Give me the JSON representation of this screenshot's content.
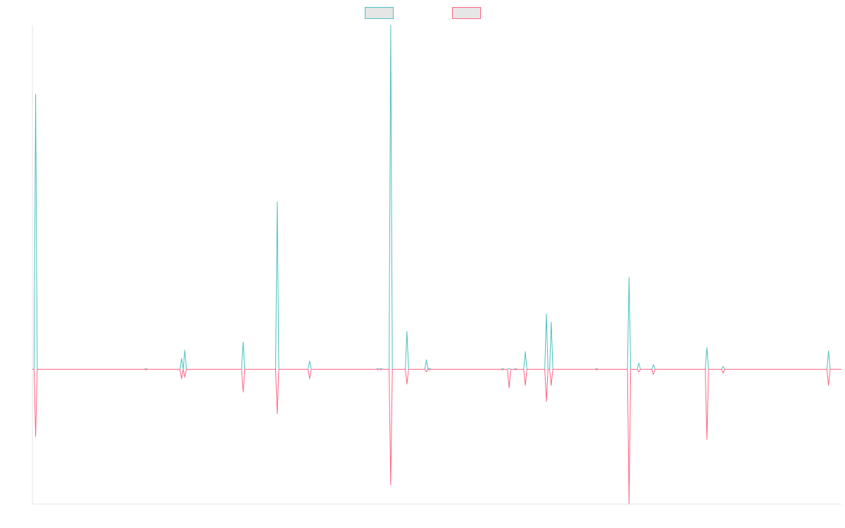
{
  "chart_data": {
    "type": "line",
    "title": "",
    "xlabel": "",
    "ylabel": "",
    "grid": false,
    "legend_position": "top-center",
    "ylim": [
      -1.0,
      2.55
    ],
    "x": [
      0,
      1,
      2,
      3,
      4,
      5,
      6,
      7,
      8,
      9,
      10,
      11,
      12,
      13,
      14,
      15,
      16,
      17,
      18,
      19,
      20,
      21,
      22,
      23,
      24,
      25,
      26,
      27,
      28,
      29,
      30,
      31,
      32,
      33,
      34,
      35,
      36,
      37,
      38,
      39,
      40,
      41,
      42,
      43,
      44,
      45,
      46,
      47,
      48,
      49,
      50,
      51,
      52,
      53,
      54,
      55,
      56,
      57,
      58,
      59,
      60,
      61,
      62,
      63,
      64,
      65,
      66,
      67,
      68,
      69,
      70,
      71,
      72,
      73,
      74,
      75,
      76,
      77,
      78,
      79,
      80,
      81,
      82,
      83,
      84,
      85,
      86,
      87,
      88,
      89,
      90,
      91,
      92,
      93,
      94,
      95,
      96,
      97,
      98,
      99,
      100,
      101,
      102,
      103,
      104,
      105,
      106,
      107,
      108,
      109,
      110,
      111,
      112,
      113,
      114,
      115,
      116,
      117,
      118,
      119,
      120,
      121,
      122,
      123,
      124,
      125,
      126,
      127,
      128,
      129,
      130,
      131,
      132,
      133,
      134,
      135,
      136,
      137,
      138,
      139,
      140,
      141,
      142,
      143,
      144,
      145,
      146,
      147,
      148,
      149,
      150,
      151,
      152,
      153,
      154,
      155,
      156,
      157,
      158,
      159,
      160,
      161,
      162,
      163,
      164,
      165,
      166,
      167,
      168,
      169,
      170,
      171,
      172,
      173,
      174,
      175,
      176,
      177,
      178,
      179,
      180,
      181,
      182,
      183,
      184,
      185,
      186,
      187,
      188,
      189,
      190,
      191,
      192,
      193,
      194,
      195,
      196,
      197,
      198,
      199,
      200,
      201,
      202,
      203,
      204,
      205,
      206,
      207,
      208,
      209,
      210,
      211,
      212,
      213,
      214,
      215,
      216,
      217,
      218,
      219,
      220,
      221,
      222,
      223,
      224,
      225,
      226,
      227,
      228,
      229,
      230,
      231,
      232,
      233,
      234,
      235,
      236,
      237,
      238,
      239,
      240,
      241,
      242,
      243,
      244,
      245,
      246,
      247,
      248,
      249,
      250,
      251,
      252,
      253,
      254,
      255,
      256,
      257,
      258,
      259,
      260,
      261,
      262,
      263,
      264,
      265,
      266,
      267,
      268,
      269,
      270,
      271,
      272,
      273,
      274,
      275,
      276,
      277,
      278,
      279,
      280,
      281,
      282,
      283,
      284,
      285,
      286,
      287,
      288,
      289,
      290,
      291,
      292,
      293,
      294,
      295,
      296,
      297,
      298,
      299,
      300,
      301,
      302,
      303,
      304,
      305,
      306,
      307,
      308,
      309,
      310,
      311,
      312,
      313,
      314,
      315,
      316,
      317,
      318,
      319,
      320,
      321,
      322,
      323,
      324,
      325,
      326,
      327,
      328,
      329,
      330,
      331,
      332,
      333,
      334,
      335,
      336,
      337,
      338,
      339,
      340,
      341,
      342,
      343,
      344,
      345,
      346,
      347,
      348,
      349,
      350,
      351,
      352,
      353,
      354,
      355,
      356,
      357,
      358,
      359,
      360,
      361,
      362,
      363,
      364,
      365,
      366,
      367,
      368,
      369,
      370,
      371,
      372,
      373,
      374,
      375,
      376,
      377,
      378,
      379,
      380,
      381,
      382,
      383,
      384,
      385,
      386,
      387,
      388,
      389,
      390,
      391,
      392,
      393,
      394,
      395,
      396,
      397,
      398,
      399,
      400,
      401,
      402,
      403,
      404,
      405,
      406,
      407,
      408,
      409,
      410,
      411,
      412,
      413,
      414,
      415,
      416,
      417,
      418,
      419,
      420,
      421,
      422,
      423,
      424,
      425,
      426,
      427,
      428,
      429,
      430,
      431,
      432,
      433,
      434,
      435,
      436,
      437,
      438,
      439,
      440,
      441,
      442,
      443,
      444,
      445,
      446,
      447,
      448,
      449,
      450,
      451,
      452,
      453,
      454,
      455,
      456,
      457,
      458,
      459,
      460,
      461,
      462,
      463,
      464,
      465,
      466,
      467,
      468,
      469,
      470,
      471,
      472,
      473,
      474,
      475,
      476,
      477,
      478,
      479,
      480,
      481,
      482,
      483,
      484,
      485,
      486,
      487,
      488,
      489,
      490,
      491,
      492,
      493,
      494,
      495,
      496,
      497,
      498,
      499
    ],
    "series": [
      {
        "name": "",
        "color": "#4bc0c0",
        "spikes": [
          [
            2,
            2.04
          ],
          [
            70,
            0.005
          ],
          [
            92,
            0.08
          ],
          [
            94,
            0.14
          ],
          [
            130,
            0.2
          ],
          [
            151,
            1.24
          ],
          [
            171,
            0.06
          ],
          [
            213,
            0.005
          ],
          [
            215,
            0.005
          ],
          [
            221,
            2.55
          ],
          [
            231,
            0.28
          ],
          [
            243,
            0.07
          ],
          [
            245,
            0.005
          ],
          [
            290,
            0.005
          ],
          [
            294,
            0.005
          ],
          [
            298,
            0.005
          ],
          [
            304,
            0.13
          ],
          [
            317,
            0.41
          ],
          [
            320,
            0.35
          ],
          [
            348,
            0.005
          ],
          [
            368,
            0.68
          ],
          [
            374,
            0.045
          ],
          [
            383,
            0.035
          ],
          [
            416,
            0.16
          ],
          [
            426,
            0.02
          ],
          [
            491,
            0.135
          ]
        ]
      },
      {
        "name": "",
        "color": "#ff6384",
        "spikes": [
          [
            2,
            -0.5
          ],
          [
            70,
            -0.005
          ],
          [
            92,
            -0.07
          ],
          [
            94,
            -0.06
          ],
          [
            130,
            -0.17
          ],
          [
            151,
            -0.33
          ],
          [
            171,
            -0.07
          ],
          [
            213,
            -0.005
          ],
          [
            215,
            -0.005
          ],
          [
            221,
            -0.86
          ],
          [
            231,
            -0.11
          ],
          [
            243,
            -0.02
          ],
          [
            245,
            -0.005
          ],
          [
            290,
            -0.005
          ],
          [
            294,
            -0.14
          ],
          [
            298,
            -0.005
          ],
          [
            304,
            -0.12
          ],
          [
            317,
            -0.24
          ],
          [
            320,
            -0.12
          ],
          [
            348,
            -0.005
          ],
          [
            368,
            -1.0
          ],
          [
            374,
            -0.02
          ],
          [
            383,
            -0.04
          ],
          [
            416,
            -0.52
          ],
          [
            426,
            -0.03
          ],
          [
            491,
            -0.12
          ]
        ]
      }
    ]
  }
}
